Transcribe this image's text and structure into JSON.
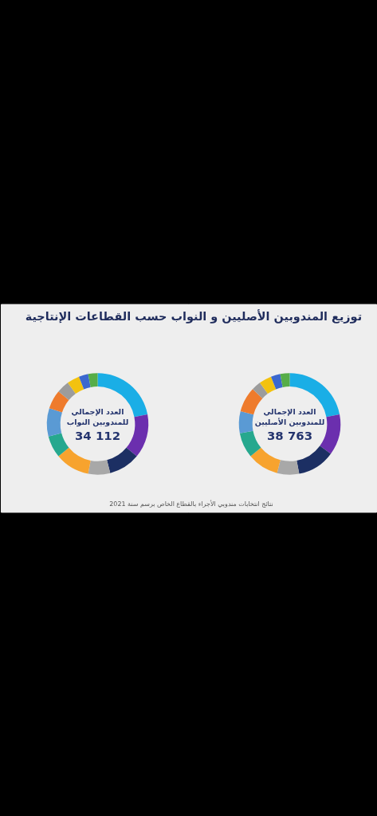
{
  "chart_data": [
    {
      "type": "donut",
      "title": "توزيع المندوبين الأصليين و النواب حسب القطاعات الإنتاجية",
      "categories": [
        null,
        null,
        null,
        null,
        null,
        null,
        null,
        null,
        null,
        null,
        null,
        null
      ],
      "values": [
        22,
        13,
        12,
        7,
        10,
        8,
        7,
        8,
        3,
        4,
        3,
        3
      ],
      "colors": [
        "#1aaee6",
        "#6b2fae",
        "#1c2f63",
        "#a8a8a8",
        "#f7a32e",
        "#26a88e",
        "#5a9ad4",
        "#ee7b2c",
        "#9c9c9c",
        "#f3c20f",
        "#3b68cf",
        "#56ad48"
      ],
      "annotations": [
        "العدد الإجمالي",
        "للمندوبين الأصليين",
        "38 763",
        "نتائج انتخابات مندوبي الأجراء بالقطاع الخاص برسم سنة 2021"
      ]
    },
    {
      "type": "donut",
      "categories": [
        null,
        null,
        null,
        null,
        null,
        null,
        null,
        null,
        null,
        null,
        null,
        null
      ],
      "values": [
        22,
        14,
        10,
        7,
        11,
        7,
        9,
        6,
        4,
        4,
        3,
        3
      ],
      "colors": [
        "#1aaee6",
        "#6b2fae",
        "#1c2f63",
        "#a8a8a8",
        "#f7a32e",
        "#26a88e",
        "#5a9ad4",
        "#ee7b2c",
        "#9c9c9c",
        "#f3c20f",
        "#3b68cf",
        "#56ad48"
      ],
      "annotations": [
        "العدد الإجمالي",
        "للمندوبين النواب",
        "34 112"
      ]
    }
  ]
}
